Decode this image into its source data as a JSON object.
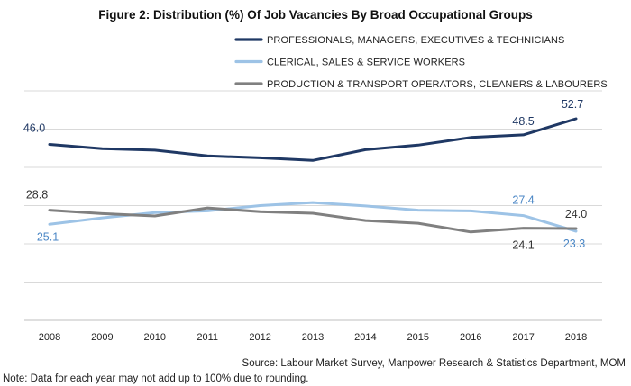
{
  "chart_data": {
    "type": "line",
    "title": "Figure 2: Distribution (%) Of Job Vacancies By Broad Occupational Groups",
    "categories": [
      "2008",
      "2009",
      "2010",
      "2011",
      "2012",
      "2013",
      "2014",
      "2015",
      "2016",
      "2017",
      "2018"
    ],
    "series": [
      {
        "name": "PROFESSIONALS, MANAGERS, EXECUTIVES & TECHNICIANS",
        "color": "#1f3864",
        "values": [
          46.0,
          44.9,
          44.5,
          43.0,
          42.5,
          41.8,
          44.6,
          45.8,
          47.8,
          48.5,
          52.7
        ]
      },
      {
        "name": "CLERICAL, SALES & SERVICE WORKERS",
        "color": "#9dc3e6",
        "values": [
          25.1,
          26.8,
          28.2,
          28.6,
          30.0,
          30.8,
          29.9,
          28.8,
          28.6,
          27.4,
          23.3
        ]
      },
      {
        "name": "PRODUCTION & TRANSPORT OPERATORS, CLEANERS & LABOURERS",
        "color": "#808080",
        "values": [
          28.8,
          27.9,
          27.3,
          29.4,
          28.4,
          28.0,
          26.1,
          25.4,
          23.1,
          24.1,
          24.0
        ]
      }
    ],
    "data_labels": [
      {
        "series": 0,
        "index": 0,
        "text": "46.0",
        "color": "#1f3864"
      },
      {
        "series": 0,
        "index": 9,
        "text": "48.5",
        "color": "#1f3864"
      },
      {
        "series": 0,
        "index": 10,
        "text": "52.7",
        "color": "#1f3864"
      },
      {
        "series": 1,
        "index": 0,
        "text": "25.1",
        "color": "#4a86c5"
      },
      {
        "series": 1,
        "index": 9,
        "text": "27.4",
        "color": "#4a86c5"
      },
      {
        "series": 1,
        "index": 10,
        "text": "23.3",
        "color": "#4a86c5"
      },
      {
        "series": 2,
        "index": 0,
        "text": "28.8",
        "color": "#333333"
      },
      {
        "series": 2,
        "index": 9,
        "text": "24.1",
        "color": "#333333"
      },
      {
        "series": 2,
        "index": 10,
        "text": "24.0",
        "color": "#333333"
      }
    ],
    "ylim": [
      0,
      60
    ],
    "grid": true,
    "legend_position": "top-right"
  },
  "source": "Source: Labour Market Survey, Manpower Research & Statistics Department, MOM",
  "note": "Note: Data for each year may not add up to 100% due to rounding."
}
